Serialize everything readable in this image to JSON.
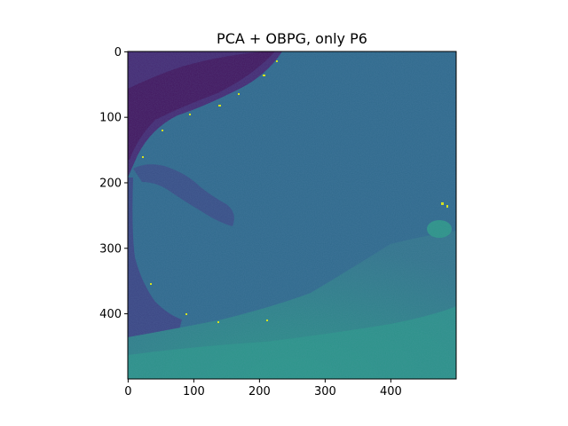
{
  "chart_data": {
    "type": "heatmap",
    "title": "PCA + OBPG, only P6",
    "xlabel": "",
    "ylabel": "",
    "xlim": [
      -0.5,
      499.5
    ],
    "ylim": [
      499.5,
      -0.5
    ],
    "x_ticks": [
      0,
      100,
      200,
      300,
      400
    ],
    "y_ticks": [
      0,
      100,
      200,
      300,
      400
    ],
    "colormap": "viridis",
    "grid": false,
    "colors": {
      "background_fill": "#306a8d",
      "deep_purple": "#43175f",
      "purple": "#462a74",
      "blue_purple": "#3c4b85",
      "teal": "#2f8a8a",
      "green_teal": "#2a9a86",
      "bright_yellow": "#d5e21f"
    }
  }
}
